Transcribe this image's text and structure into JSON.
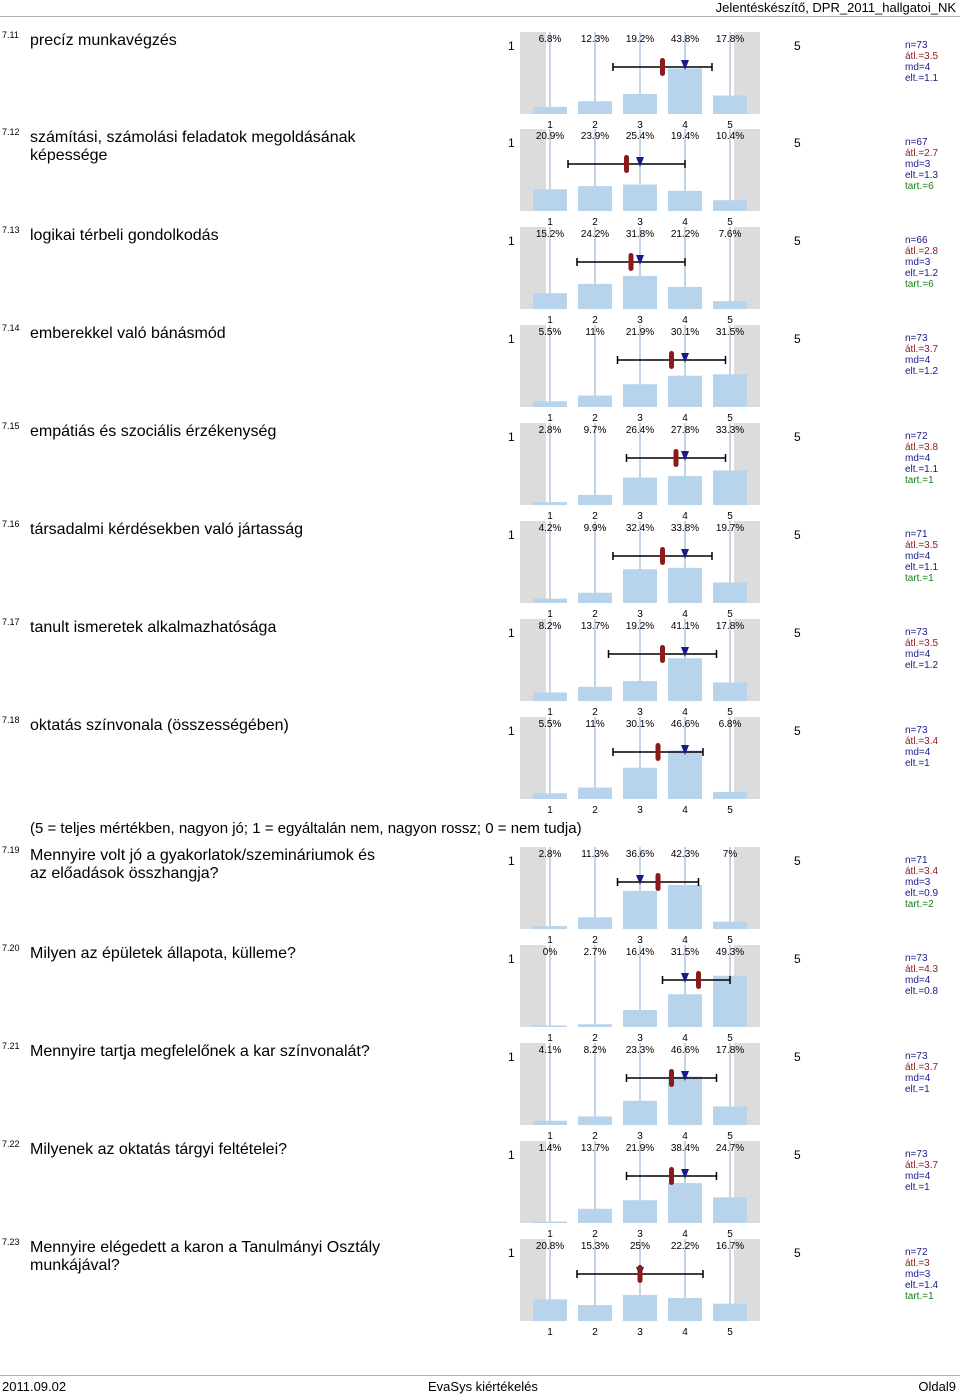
{
  "header": {
    "title": "Jelentéskészítő, DPR_2011_hallgatoi_NK"
  },
  "footer": {
    "date": "2011.09.02",
    "center": "EvaSys kiértékelés",
    "page": "Oldal9"
  },
  "section_note": "(5 = teljes mértékben, nagyon jó; 1 = egyáltalán nem, nagyon rossz; 0 = nem tudja)",
  "scale_labels": [
    "1",
    "2",
    "3",
    "4",
    "5"
  ],
  "chart_data": [
    {
      "type": "bar",
      "id": "7.11",
      "question": "precíz munkavégzés",
      "categories": [
        "1",
        "2",
        "3",
        "4",
        "5"
      ],
      "labels": [
        "6.8%",
        "12.3%",
        "19.2%",
        "43.8%",
        "17.8%"
      ],
      "values": [
        6.8,
        12.3,
        19.2,
        43.8,
        17.8
      ],
      "stats": {
        "n": "n=73",
        "atl": "átl.=3.5",
        "md": "md=4",
        "elt": "elt.=1.1"
      },
      "mean": 3.5,
      "median": 4,
      "sd": 1.1
    },
    {
      "type": "bar",
      "id": "7.12",
      "question": "számítási, számolási feladatok megoldásának képessége",
      "categories": [
        "1",
        "2",
        "3",
        "4",
        "5"
      ],
      "labels": [
        "20.9%",
        "23.9%",
        "25.4%",
        "19.4%",
        "10.4%"
      ],
      "values": [
        20.9,
        23.9,
        25.4,
        19.4,
        10.4
      ],
      "stats": {
        "n": "n=67",
        "atl": "átl.=2.7",
        "md": "md=3",
        "elt": "elt.=1.3",
        "tart": "tart.=6"
      },
      "mean": 2.7,
      "median": 3,
      "sd": 1.3
    },
    {
      "type": "bar",
      "id": "7.13",
      "question": "logikai térbeli gondolkodás",
      "categories": [
        "1",
        "2",
        "3",
        "4",
        "5"
      ],
      "labels": [
        "15.2%",
        "24.2%",
        "31.8%",
        "21.2%",
        "7.6%"
      ],
      "values": [
        15.2,
        24.2,
        31.8,
        21.2,
        7.6
      ],
      "stats": {
        "n": "n=66",
        "atl": "átl.=2.8",
        "md": "md=3",
        "elt": "elt.=1.2",
        "tart": "tart.=6"
      },
      "mean": 2.8,
      "median": 3,
      "sd": 1.2
    },
    {
      "type": "bar",
      "id": "7.14",
      "question": "emberekkel való bánásmód",
      "categories": [
        "1",
        "2",
        "3",
        "4",
        "5"
      ],
      "labels": [
        "5.5%",
        "11%",
        "21.9%",
        "30.1%",
        "31.5%"
      ],
      "values": [
        5.5,
        11,
        21.9,
        30.1,
        31.5
      ],
      "stats": {
        "n": "n=73",
        "atl": "átl.=3.7",
        "md": "md=4",
        "elt": "elt.=1.2"
      },
      "mean": 3.7,
      "median": 4,
      "sd": 1.2
    },
    {
      "type": "bar",
      "id": "7.15",
      "question": "empátiás és szociális érzékenység",
      "categories": [
        "1",
        "2",
        "3",
        "4",
        "5"
      ],
      "labels": [
        "2.8%",
        "9.7%",
        "26.4%",
        "27.8%",
        "33.3%"
      ],
      "values": [
        2.8,
        9.7,
        26.4,
        27.8,
        33.3
      ],
      "stats": {
        "n": "n=72",
        "atl": "átl.=3.8",
        "md": "md=4",
        "elt": "elt.=1.1",
        "tart": "tart.=1"
      },
      "mean": 3.8,
      "median": 4,
      "sd": 1.1
    },
    {
      "type": "bar",
      "id": "7.16",
      "question": "társadalmi kérdésekben való jártasság",
      "categories": [
        "1",
        "2",
        "3",
        "4",
        "5"
      ],
      "labels": [
        "4.2%",
        "9.9%",
        "32.4%",
        "33.8%",
        "19.7%"
      ],
      "values": [
        4.2,
        9.9,
        32.4,
        33.8,
        19.7
      ],
      "stats": {
        "n": "n=71",
        "atl": "átl.=3.5",
        "md": "md=4",
        "elt": "elt.=1.1",
        "tart": "tart.=1"
      },
      "mean": 3.5,
      "median": 4,
      "sd": 1.1
    },
    {
      "type": "bar",
      "id": "7.17",
      "question": "tanult ismeretek alkalmazhatósága",
      "categories": [
        "1",
        "2",
        "3",
        "4",
        "5"
      ],
      "labels": [
        "8.2%",
        "13.7%",
        "19.2%",
        "41.1%",
        "17.8%"
      ],
      "values": [
        8.2,
        13.7,
        19.2,
        41.1,
        17.8
      ],
      "stats": {
        "n": "n=73",
        "atl": "átl.=3.5",
        "md": "md=4",
        "elt": "elt.=1.2"
      },
      "mean": 3.5,
      "median": 4,
      "sd": 1.2
    },
    {
      "type": "bar",
      "id": "7.18",
      "question": "oktatás színvonala (összességében)",
      "categories": [
        "1",
        "2",
        "3",
        "4",
        "5"
      ],
      "labels": [
        "5.5%",
        "11%",
        "30.1%",
        "46.6%",
        "6.8%"
      ],
      "values": [
        5.5,
        11,
        30.1,
        46.6,
        6.8
      ],
      "stats": {
        "n": "n=73",
        "atl": "átl.=3.4",
        "md": "md=4",
        "elt": "elt.=1"
      },
      "mean": 3.4,
      "median": 4,
      "sd": 1.0
    },
    {
      "type": "bar",
      "id": "7.19",
      "question": "Mennyire volt jó a gyakorlatok/szemináriumok és az előadások összhangja?",
      "categories": [
        "1",
        "2",
        "3",
        "4",
        "5"
      ],
      "labels": [
        "2.8%",
        "11.3%",
        "36.6%",
        "42.3%",
        "7%"
      ],
      "values": [
        2.8,
        11.3,
        36.6,
        42.3,
        7
      ],
      "stats": {
        "n": "n=71",
        "atl": "átl.=3.4",
        "md": "md=3",
        "elt": "elt.=0.9",
        "tart": "tart.=2"
      },
      "mean": 3.4,
      "median": 3,
      "sd": 0.9
    },
    {
      "type": "bar",
      "id": "7.20",
      "question": "Milyen az épületek állapota, külleme?",
      "categories": [
        "1",
        "2",
        "3",
        "4",
        "5"
      ],
      "labels": [
        "0%",
        "2.7%",
        "16.4%",
        "31.5%",
        "49.3%"
      ],
      "values": [
        0,
        2.7,
        16.4,
        31.5,
        49.3
      ],
      "stats": {
        "n": "n=73",
        "atl": "átl.=4.3",
        "md": "md=4",
        "elt": "elt.=0.8"
      },
      "mean": 4.3,
      "median": 4,
      "sd": 0.8
    },
    {
      "type": "bar",
      "id": "7.21",
      "question": "Mennyire tartja megfelelőnek a kar színvonalát?",
      "categories": [
        "1",
        "2",
        "3",
        "4",
        "5"
      ],
      "labels": [
        "4.1%",
        "8.2%",
        "23.3%",
        "46.6%",
        "17.8%"
      ],
      "values": [
        4.1,
        8.2,
        23.3,
        46.6,
        17.8
      ],
      "stats": {
        "n": "n=73",
        "atl": "átl.=3.7",
        "md": "md=4",
        "elt": "elt.=1"
      },
      "mean": 3.7,
      "median": 4,
      "sd": 1.0
    },
    {
      "type": "bar",
      "id": "7.22",
      "question": "Milyenek az oktatás tárgyi feltételei?",
      "categories": [
        "1",
        "2",
        "3",
        "4",
        "5"
      ],
      "labels": [
        "1.4%",
        "13.7%",
        "21.9%",
        "38.4%",
        "24.7%"
      ],
      "values": [
        1.4,
        13.7,
        21.9,
        38.4,
        24.7
      ],
      "stats": {
        "n": "n=73",
        "atl": "átl.=3.7",
        "md": "md=4",
        "elt": "elt.=1"
      },
      "mean": 3.7,
      "median": 4,
      "sd": 1.0
    },
    {
      "type": "bar",
      "id": "7.23",
      "question": "Mennyire elégedett a karon a Tanulmányi Osztály munkájával?",
      "categories": [
        "1",
        "2",
        "3",
        "4",
        "5"
      ],
      "labels": [
        "20.8%",
        "15.3%",
        "25%",
        "22.2%",
        "16.7%"
      ],
      "values": [
        20.8,
        15.3,
        25,
        22.2,
        16.7
      ],
      "stats": {
        "n": "n=72",
        "atl": "átl.=3",
        "md": "md=3",
        "elt": "elt.=1.4",
        "tart": "tart.=1"
      },
      "mean": 3.0,
      "median": 3,
      "sd": 1.4
    }
  ]
}
